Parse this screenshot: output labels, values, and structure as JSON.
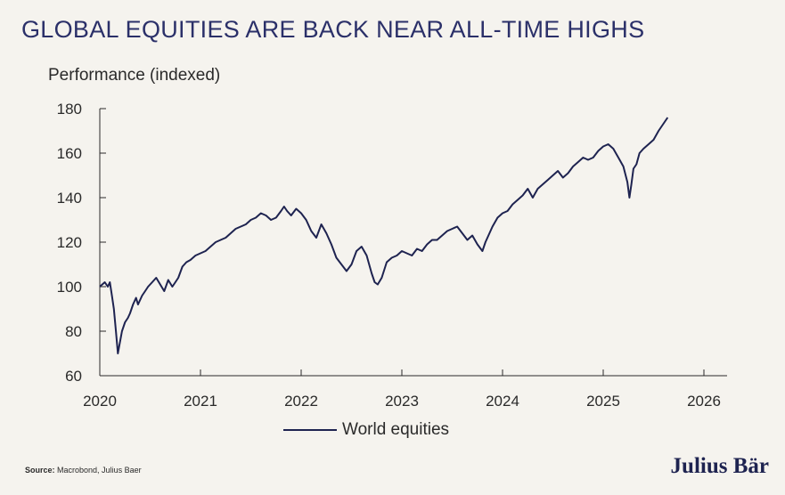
{
  "header": {
    "title": "GLOBAL EQUITIES ARE BACK NEAR ALL-TIME HIGHS",
    "ylabel": "Performance (indexed)"
  },
  "footer": {
    "source_label": "Source:",
    "source_text": "Macrobond, Julius Baer",
    "brand": "Julius Bär"
  },
  "colors": {
    "line": "#1e2350",
    "axis": "#2a2a2a",
    "background": "#f5f3ee"
  },
  "chart_data": {
    "type": "line",
    "title": "GLOBAL EQUITIES ARE BACK NEAR ALL-TIME HIGHS",
    "xlabel": "",
    "ylabel": "Performance (indexed)",
    "xlim": [
      2020,
      2026
    ],
    "ylim": [
      60,
      180
    ],
    "xticks": [
      2020,
      2021,
      2022,
      2023,
      2024,
      2025,
      2026
    ],
    "yticks": [
      60,
      80,
      100,
      120,
      140,
      160,
      180
    ],
    "legend": "bottom-center",
    "grid": false,
    "series": [
      {
        "name": "World equities",
        "x": [
          2020.0,
          2020.05,
          2020.08,
          2020.1,
          2020.12,
          2020.14,
          2020.16,
          2020.18,
          2020.2,
          2020.22,
          2020.25,
          2020.28,
          2020.3,
          2020.33,
          2020.36,
          2020.38,
          2020.42,
          2020.45,
          2020.48,
          2020.52,
          2020.56,
          2020.6,
          2020.64,
          2020.68,
          2020.72,
          2020.75,
          2020.78,
          2020.82,
          2020.86,
          2020.9,
          2020.95,
          2021.0,
          2021.05,
          2021.1,
          2021.15,
          2021.2,
          2021.25,
          2021.3,
          2021.35,
          2021.4,
          2021.45,
          2021.5,
          2021.55,
          2021.6,
          2021.65,
          2021.7,
          2021.75,
          2021.8,
          2021.83,
          2021.86,
          2021.9,
          2021.95,
          2022.0,
          2022.05,
          2022.1,
          2022.15,
          2022.2,
          2022.25,
          2022.3,
          2022.35,
          2022.4,
          2022.45,
          2022.5,
          2022.55,
          2022.6,
          2022.65,
          2022.7,
          2022.73,
          2022.76,
          2022.8,
          2022.85,
          2022.9,
          2022.95,
          2023.0,
          2023.05,
          2023.1,
          2023.15,
          2023.2,
          2023.25,
          2023.3,
          2023.35,
          2023.4,
          2023.45,
          2023.5,
          2023.55,
          2023.6,
          2023.65,
          2023.7,
          2023.75,
          2023.8,
          2023.83,
          2023.86,
          2023.9,
          2023.95,
          2024.0,
          2024.05,
          2024.1,
          2024.15,
          2024.2,
          2024.25,
          2024.3,
          2024.35,
          2024.4,
          2024.45,
          2024.5,
          2024.55,
          2024.6,
          2024.65,
          2024.7,
          2024.75,
          2024.8,
          2024.85,
          2024.9,
          2024.95,
          2025.0,
          2025.05,
          2025.1,
          2025.15,
          2025.2,
          2025.24,
          2025.26,
          2025.28,
          2025.3,
          2025.33,
          2025.36,
          2025.4,
          2025.45,
          2025.5,
          2025.55,
          2025.58,
          2025.61,
          2025.64
        ],
        "y": [
          100,
          102,
          100,
          102,
          96,
          90,
          80,
          70,
          75,
          80,
          84,
          86,
          88,
          92,
          95,
          92,
          96,
          98,
          100,
          102,
          104,
          101,
          98,
          103,
          100,
          102,
          104,
          109,
          111,
          112,
          114,
          115,
          116,
          118,
          120,
          121,
          122,
          124,
          126,
          127,
          128,
          130,
          131,
          133,
          132,
          130,
          131,
          134,
          136,
          134,
          132,
          135,
          133,
          130,
          125,
          122,
          128,
          124,
          119,
          113,
          110,
          107,
          110,
          116,
          118,
          114,
          106,
          102,
          101,
          104,
          111,
          113,
          114,
          116,
          115,
          114,
          117,
          116,
          119,
          121,
          121,
          123,
          125,
          126,
          127,
          124,
          121,
          123,
          119,
          116,
          120,
          123,
          127,
          131,
          133,
          134,
          137,
          139,
          141,
          144,
          140,
          144,
          146,
          148,
          150,
          152,
          149,
          151,
          154,
          156,
          158,
          157,
          158,
          161,
          163,
          164,
          162,
          158,
          154,
          147,
          140,
          146,
          153,
          155,
          160,
          162,
          164,
          166,
          170,
          172,
          174,
          176
        ]
      }
    ]
  }
}
